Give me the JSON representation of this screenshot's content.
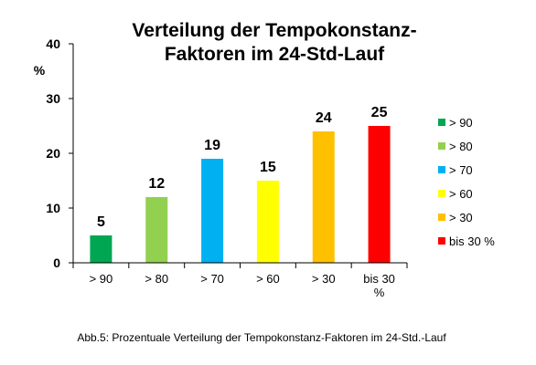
{
  "chart_data": {
    "type": "bar",
    "title_lines": [
      "Verteilung der Tempokonstanz-",
      "Faktoren im 24-Std-Lauf"
    ],
    "ylabel": "%",
    "ylim": [
      0,
      40
    ],
    "yticks": [
      0,
      10,
      20,
      30,
      40
    ],
    "categories": [
      {
        "lines": [
          "> 90"
        ]
      },
      {
        "lines": [
          "> 80"
        ]
      },
      {
        "lines": [
          "> 70"
        ]
      },
      {
        "lines": [
          "> 60"
        ]
      },
      {
        "lines": [
          "> 30"
        ]
      },
      {
        "lines": [
          "bis 30",
          "%"
        ]
      }
    ],
    "values": [
      5,
      12,
      19,
      15,
      24,
      25
    ],
    "data_labels": [
      "5",
      "12",
      "19",
      "15",
      "24",
      "25"
    ],
    "colors": [
      "#00A651",
      "#92D050",
      "#00B0F0",
      "#FFFF00",
      "#FFC000",
      "#FF0000"
    ],
    "legend": {
      "position": "right",
      "entries": [
        "> 90",
        "> 80",
        "> 70",
        "> 60",
        "> 30",
        "bis 30 %"
      ]
    },
    "grid": false
  },
  "caption": "Abb.5: Prozentuale Verteilung der Tempokonstanz-Faktoren im 24-Std.-Lauf"
}
